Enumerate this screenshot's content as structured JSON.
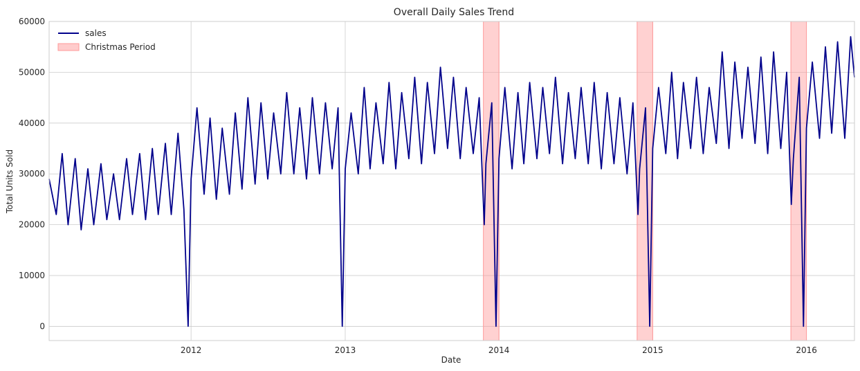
{
  "chart_data": {
    "type": "line",
    "title": "Overall Daily Sales Trend",
    "xlabel": "Date",
    "ylabel": "Total Units Sold",
    "xlim": [
      "2011-01-29",
      "2016-04-24"
    ],
    "ylim": [
      -2800,
      60000
    ],
    "x_ticks": [
      "2012",
      "2013",
      "2014",
      "2015",
      "2016"
    ],
    "y_ticks": [
      0,
      10000,
      20000,
      30000,
      40000,
      50000,
      60000
    ],
    "grid": true,
    "legend_position": "top-left",
    "colors": {
      "sales": "#00008b",
      "christmas": "#ff9999",
      "grid": "#cccccc",
      "axes": "#cccccc"
    },
    "series": [
      {
        "name": "sales",
        "x": [
          "2011-01-29",
          "2011-02-15",
          "2011-03-01",
          "2011-03-15",
          "2011-04-01",
          "2011-04-15",
          "2011-05-01",
          "2011-05-15",
          "2011-06-01",
          "2011-06-15",
          "2011-07-01",
          "2011-07-15",
          "2011-08-01",
          "2011-08-15",
          "2011-09-01",
          "2011-09-15",
          "2011-10-01",
          "2011-10-15",
          "2011-11-01",
          "2011-11-15",
          "2011-12-01",
          "2011-12-15",
          "2011-12-25",
          "2012-01-01",
          "2012-01-15",
          "2012-02-01",
          "2012-02-15",
          "2012-03-01",
          "2012-03-15",
          "2012-04-01",
          "2012-04-15",
          "2012-05-01",
          "2012-05-15",
          "2012-06-01",
          "2012-06-15",
          "2012-07-01",
          "2012-07-15",
          "2012-08-01",
          "2012-08-15",
          "2012-09-01",
          "2012-09-15",
          "2012-10-01",
          "2012-10-15",
          "2012-11-01",
          "2012-11-15",
          "2012-12-01",
          "2012-12-15",
          "2012-12-25",
          "2013-01-01",
          "2013-01-15",
          "2013-02-01",
          "2013-02-15",
          "2013-03-01",
          "2013-03-15",
          "2013-04-01",
          "2013-04-15",
          "2013-05-01",
          "2013-05-15",
          "2013-06-01",
          "2013-06-15",
          "2013-07-01",
          "2013-07-15",
          "2013-08-01",
          "2013-08-15",
          "2013-09-01",
          "2013-09-15",
          "2013-10-01",
          "2013-10-15",
          "2013-11-01",
          "2013-11-15",
          "2013-11-27",
          "2013-12-01",
          "2013-12-15",
          "2013-12-25",
          "2014-01-01",
          "2014-01-15",
          "2014-02-01",
          "2014-02-15",
          "2014-03-01",
          "2014-03-15",
          "2014-04-01",
          "2014-04-15",
          "2014-05-01",
          "2014-05-15",
          "2014-06-01",
          "2014-06-15",
          "2014-07-01",
          "2014-07-15",
          "2014-08-01",
          "2014-08-15",
          "2014-09-01",
          "2014-09-15",
          "2014-10-01",
          "2014-10-15",
          "2014-11-01",
          "2014-11-15",
          "2014-11-27",
          "2014-12-01",
          "2014-12-15",
          "2014-12-25",
          "2015-01-01",
          "2015-01-15",
          "2015-02-01",
          "2015-02-15",
          "2015-03-01",
          "2015-03-15",
          "2015-04-01",
          "2015-04-15",
          "2015-05-01",
          "2015-05-15",
          "2015-06-01",
          "2015-06-15",
          "2015-07-01",
          "2015-07-15",
          "2015-08-01",
          "2015-08-15",
          "2015-09-01",
          "2015-09-15",
          "2015-10-01",
          "2015-10-15",
          "2015-11-01",
          "2015-11-15",
          "2015-11-26",
          "2015-12-01",
          "2015-12-15",
          "2015-12-25",
          "2016-01-01",
          "2016-01-15",
          "2016-02-01",
          "2016-02-15",
          "2016-03-01",
          "2016-03-15",
          "2016-04-01",
          "2016-04-15",
          "2016-04-24"
        ],
        "y": [
          29000,
          22000,
          34000,
          20000,
          33000,
          19000,
          31000,
          20000,
          32000,
          21000,
          30000,
          21000,
          33000,
          22000,
          34000,
          21000,
          35000,
          22000,
          36000,
          22000,
          38000,
          23000,
          0,
          29000,
          43000,
          26000,
          41000,
          25000,
          39000,
          26000,
          42000,
          27000,
          45000,
          28000,
          44000,
          29000,
          42000,
          30000,
          46000,
          30000,
          43000,
          29000,
          45000,
          30000,
          44000,
          31000,
          43000,
          0,
          31000,
          42000,
          30000,
          47000,
          31000,
          44000,
          32000,
          48000,
          31000,
          46000,
          33000,
          49000,
          32000,
          48000,
          34000,
          51000,
          35000,
          49000,
          33000,
          47000,
          34000,
          45000,
          20000,
          32000,
          44000,
          0,
          33000,
          47000,
          31000,
          46000,
          32000,
          48000,
          33000,
          47000,
          34000,
          49000,
          32000,
          46000,
          33000,
          47000,
          32000,
          48000,
          31000,
          46000,
          32000,
          45000,
          30000,
          44000,
          22000,
          31000,
          43000,
          0,
          35000,
          47000,
          34000,
          50000,
          33000,
          48000,
          35000,
          49000,
          34000,
          47000,
          36000,
          54000,
          35000,
          52000,
          37000,
          51000,
          36000,
          53000,
          34000,
          54000,
          35000,
          50000,
          24000,
          33000,
          49000,
          0,
          39000,
          52000,
          37000,
          55000,
          38000,
          56000,
          37000,
          57000,
          49000
        ]
      }
    ],
    "shaded_regions": [
      {
        "name": "Christmas Period",
        "x_start": "2013-11-25",
        "x_end": "2014-01-01"
      },
      {
        "name": "Christmas Period",
        "x_start": "2014-11-25",
        "x_end": "2015-01-01"
      },
      {
        "name": "Christmas Period",
        "x_start": "2015-11-25",
        "x_end": "2016-01-01"
      }
    ],
    "legend": [
      "sales",
      "Christmas Period"
    ]
  }
}
